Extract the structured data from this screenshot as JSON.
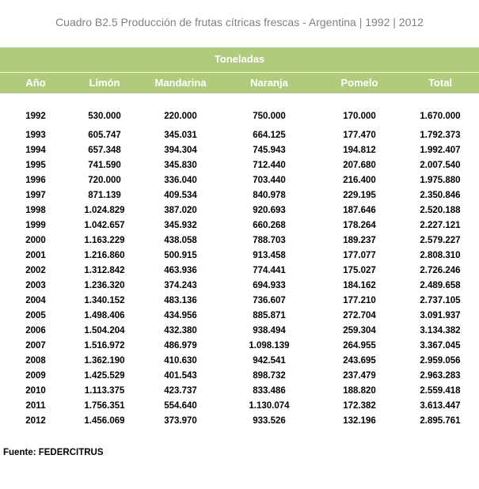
{
  "title": "Cuadro B2.5 Producción de frutas cítricas frescas - Argentina | 1992 | 2012",
  "header": {
    "group_label": "Toneladas",
    "columns": [
      "Año",
      "Limón",
      "Mandarina",
      "Naranja",
      "Pomelo",
      "Total"
    ]
  },
  "rows": [
    [
      "1992",
      "530.000",
      "220.000",
      "750.000",
      "170.000",
      "1.670.000"
    ],
    [
      "1993",
      "605.747",
      "345.031",
      "664.125",
      "177.470",
      "1.792.373"
    ],
    [
      "1994",
      "657.348",
      "394.304",
      "745.943",
      "194.812",
      "1.992.407"
    ],
    [
      "1995",
      "741.590",
      "345.830",
      "712.440",
      "207.680",
      "2.007.540"
    ],
    [
      "1996",
      "720.000",
      "336.040",
      "703.440",
      "216.400",
      "1.975.880"
    ],
    [
      "1997",
      "871.139",
      "409.534",
      "840.978",
      "229.195",
      "2.350.846"
    ],
    [
      "1998",
      "1.024.829",
      "387.020",
      "920.693",
      "187.646",
      "2.520.188"
    ],
    [
      "1999",
      "1.042.657",
      "345.932",
      "660.268",
      "178.264",
      "2.227.121"
    ],
    [
      "2000",
      "1.163.229",
      "438.058",
      "788.703",
      "189.237",
      "2.579.227"
    ],
    [
      "2001",
      "1.216.860",
      "500.915",
      "913.458",
      "177.077",
      "2.808.310"
    ],
    [
      "2002",
      "1.312.842",
      "463.936",
      "774.441",
      "175.027",
      "2.726.246"
    ],
    [
      "2003",
      "1.236.320",
      "374.243",
      "694.933",
      "184.162",
      "2.489.658"
    ],
    [
      "2004",
      "1.340.152",
      "483.136",
      "736.607",
      "177.210",
      "2.737.105"
    ],
    [
      "2005",
      "1.498.406",
      "434.956",
      "885.871",
      "272.704",
      "3.091.937"
    ],
    [
      "2006",
      "1.504.204",
      "432.380",
      "938.494",
      "259.304",
      "3.134.382"
    ],
    [
      "2007",
      "1.516.972",
      "486.979",
      "1.098.139",
      "264.955",
      "3.367.045"
    ],
    [
      "2008",
      "1.362.190",
      "410.630",
      "942.541",
      "243.695",
      "2.959.056"
    ],
    [
      "2009",
      "1.425.529",
      "401.543",
      "898.732",
      "237.479",
      "2.963.283"
    ],
    [
      "2010",
      "1.113.375",
      "423.737",
      "833.486",
      "188.820",
      "2.559.418"
    ],
    [
      "2011",
      "1.756.351",
      "554.640",
      "1.130.074",
      "172.382",
      "3.613.447"
    ],
    [
      "2012",
      "1.456.069",
      "373.970",
      "933.526",
      "132.196",
      "2.895.761"
    ]
  ],
  "source": "Fuente: FEDERCITRUS",
  "colors": {
    "header_bg": "#b1cb7c",
    "header_text": "#ffffff",
    "title_text": "#808080"
  }
}
